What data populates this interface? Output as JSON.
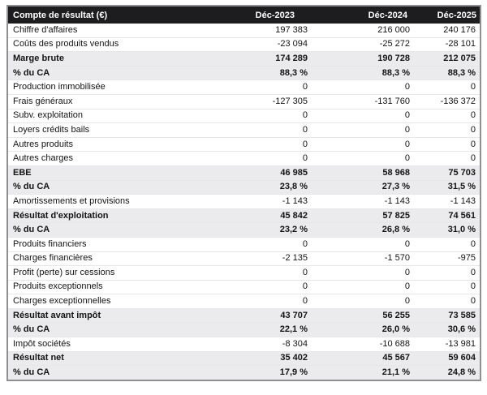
{
  "colors": {
    "header_bg": "#1d1d1f",
    "header_text": "#ffffff",
    "total_row_bg": "#ebebee",
    "outer_border": "#8f8f93",
    "text": "#141414"
  },
  "chart_data": {
    "type": "table",
    "title": "Compte de résultat (€)",
    "columns": [
      "Compte de résultat (€)",
      "Déc-2023",
      "Déc-2024",
      "Déc-2025"
    ],
    "rows": [
      {
        "label": "Chiffre d'affaires",
        "values": [
          "197 383",
          "216 000",
          "240 176"
        ],
        "bold": false
      },
      {
        "label": "Coûts des produits vendus",
        "values": [
          "-23 094",
          "-25 272",
          "-28 101"
        ],
        "bold": false
      },
      {
        "label": "Marge brute",
        "values": [
          "174 289",
          "190 728",
          "212 075"
        ],
        "bold": true
      },
      {
        "label": "% du CA",
        "values": [
          "88,3 %",
          "88,3 %",
          "88,3 %"
        ],
        "bold": true
      },
      {
        "label": "Production immobilisée",
        "values": [
          "0",
          "0",
          "0"
        ],
        "bold": false
      },
      {
        "label": "Frais généraux",
        "values": [
          "-127 305",
          "-131 760",
          "-136 372"
        ],
        "bold": false
      },
      {
        "label": "Subv. exploitation",
        "values": [
          "0",
          "0",
          "0"
        ],
        "bold": false
      },
      {
        "label": "Loyers crédits bails",
        "values": [
          "0",
          "0",
          "0"
        ],
        "bold": false
      },
      {
        "label": "Autres produits",
        "values": [
          "0",
          "0",
          "0"
        ],
        "bold": false
      },
      {
        "label": "Autres charges",
        "values": [
          "0",
          "0",
          "0"
        ],
        "bold": false
      },
      {
        "label": "EBE",
        "values": [
          "46 985",
          "58 968",
          "75 703"
        ],
        "bold": true
      },
      {
        "label": "% du CA",
        "values": [
          "23,8 %",
          "27,3 %",
          "31,5 %"
        ],
        "bold": true
      },
      {
        "label": "Amortissements et provisions",
        "values": [
          "-1 143",
          "-1 143",
          "-1 143"
        ],
        "bold": false
      },
      {
        "label": "Résultat d'exploitation",
        "values": [
          "45 842",
          "57 825",
          "74 561"
        ],
        "bold": true
      },
      {
        "label": "% du CA",
        "values": [
          "23,2 %",
          "26,8 %",
          "31,0 %"
        ],
        "bold": true
      },
      {
        "label": "Produits financiers",
        "values": [
          "0",
          "0",
          "0"
        ],
        "bold": false
      },
      {
        "label": "Charges financières",
        "values": [
          "-2 135",
          "-1 570",
          "-975"
        ],
        "bold": false
      },
      {
        "label": "Profit (perte) sur cessions",
        "values": [
          "0",
          "0",
          "0"
        ],
        "bold": false
      },
      {
        "label": "Produits exceptionnels",
        "values": [
          "0",
          "0",
          "0"
        ],
        "bold": false
      },
      {
        "label": "Charges exceptionnelles",
        "values": [
          "0",
          "0",
          "0"
        ],
        "bold": false
      },
      {
        "label": "Résultat avant impôt",
        "values": [
          "43 707",
          "56 255",
          "73 585"
        ],
        "bold": true
      },
      {
        "label": "% du CA",
        "values": [
          "22,1 %",
          "26,0 %",
          "30,6 %"
        ],
        "bold": true
      },
      {
        "label": "Impôt sociétés",
        "values": [
          "-8 304",
          "-10 688",
          "-13 981"
        ],
        "bold": false
      },
      {
        "label": "Résultat net",
        "values": [
          "35 402",
          "45 567",
          "59 604"
        ],
        "bold": true
      },
      {
        "label": "% du CA",
        "values": [
          "17,9 %",
          "21,1 %",
          "24,8 %"
        ],
        "bold": true
      }
    ]
  }
}
